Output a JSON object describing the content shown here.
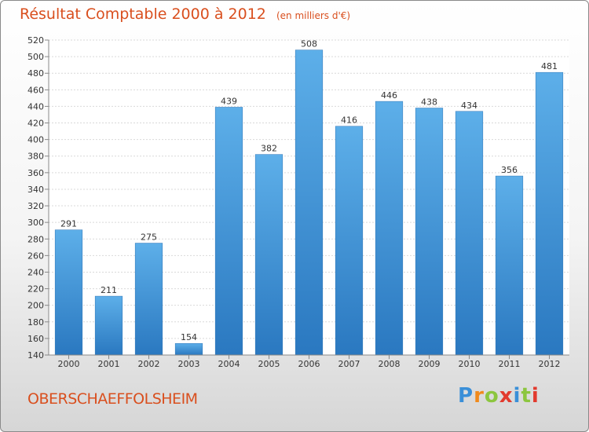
{
  "chart_data": {
    "type": "bar",
    "title": "Résultat Comptable 2000 à 2012",
    "subtitle": "(en milliers d'€)",
    "xlabel": "",
    "ylabel": "",
    "categories": [
      "2000",
      "2001",
      "2002",
      "2003",
      "2004",
      "2005",
      "2006",
      "2007",
      "2008",
      "2009",
      "2010",
      "2011",
      "2012"
    ],
    "values": [
      291,
      211,
      275,
      154,
      439,
      382,
      508,
      416,
      446,
      438,
      434,
      356,
      481
    ],
    "ylim": [
      140,
      520
    ],
    "yticks": [
      140,
      160,
      180,
      200,
      220,
      240,
      260,
      280,
      300,
      320,
      340,
      360,
      380,
      400,
      420,
      440,
      460,
      480,
      500,
      520
    ],
    "grid": true,
    "bar_color": "#3b8fd6"
  },
  "commune": "OBERSCHAEFFOLSHEIM",
  "logo": {
    "text": "Proxiti",
    "letters": [
      "P",
      "r",
      "o",
      "x",
      "i",
      "t",
      "i"
    ],
    "colors": [
      "#3a8fd8",
      "#f08a1c",
      "#8cc63f",
      "#e23a2e",
      "#3a8fd8",
      "#8cc63f",
      "#e23a2e"
    ]
  }
}
